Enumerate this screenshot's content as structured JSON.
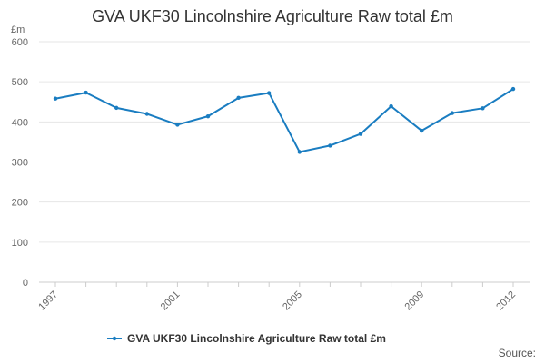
{
  "chart_data": {
    "type": "line",
    "title": "GVA UKF30 Lincolnshire Agriculture Raw total £m",
    "ylabel": "£m",
    "xlabel": "",
    "ylim": [
      0,
      600
    ],
    "yticks": [
      0,
      100,
      200,
      300,
      400,
      500,
      600
    ],
    "xtick_labels": [
      "1997",
      "2001",
      "2005",
      "2009",
      "2012"
    ],
    "grid": true,
    "legend_position": "bottom",
    "series": [
      {
        "name": "GVA UKF30 Lincolnshire Agriculture Raw total £m",
        "color": "#1a7dc1",
        "x": [
          1997,
          1998,
          1999,
          2000,
          2001,
          2002,
          2003,
          2004,
          2005,
          2006,
          2007,
          2008,
          2009,
          2010,
          2011,
          2012
        ],
        "values": [
          458,
          473,
          435,
          420,
          393,
          414,
          460,
          472,
          325,
          341,
          370,
          439,
          378,
          422,
          434,
          482
        ]
      }
    ],
    "source_label": "Source:"
  }
}
